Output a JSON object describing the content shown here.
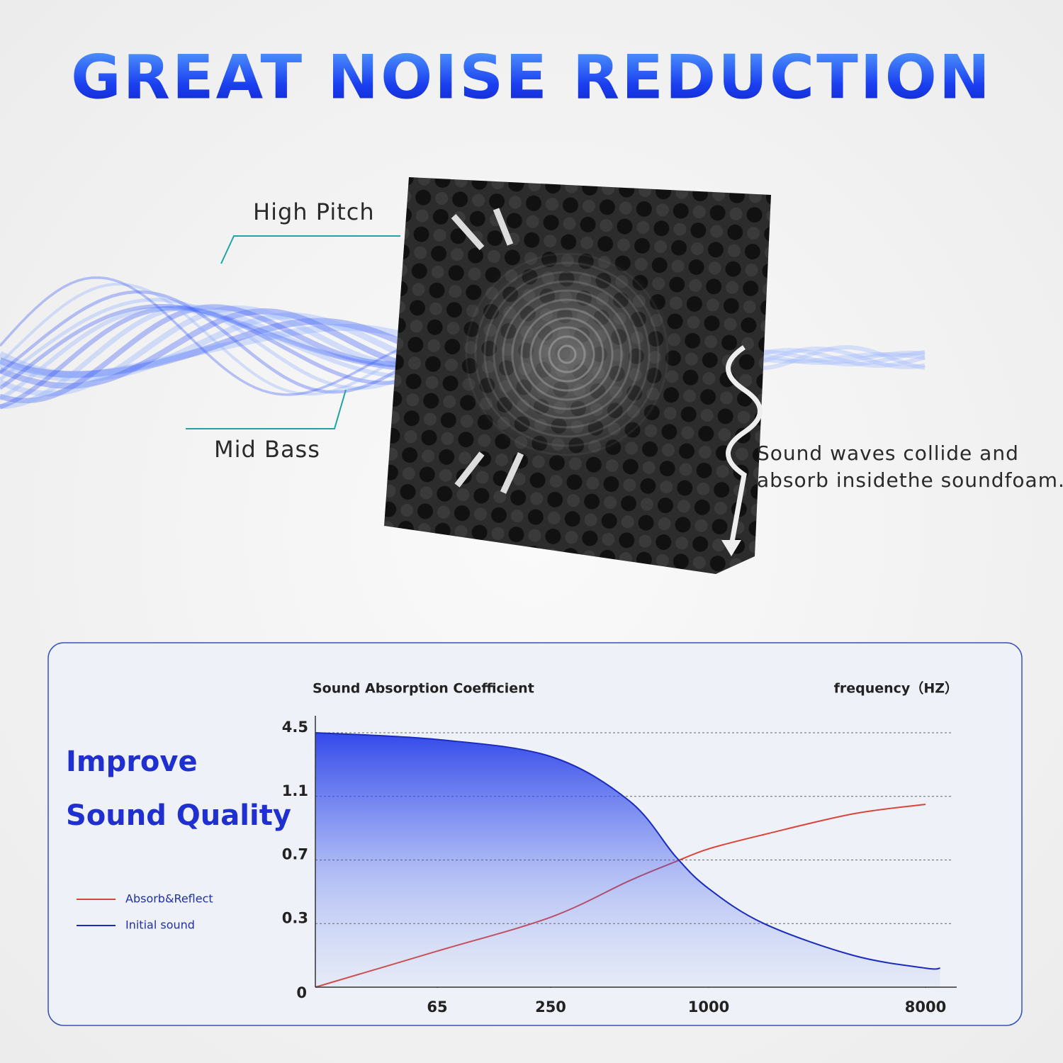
{
  "header": {
    "title": "GREAT NOISE REDUCTION"
  },
  "labels": {
    "high": "High Pitch",
    "mid": "Mid Bass",
    "note": [
      "Sound waves collide and",
      "absorb insidethe soundfoam."
    ]
  },
  "panel": {
    "heading": [
      "Improve",
      "Sound Quality"
    ]
  },
  "chart_data": {
    "type": "line",
    "title": "Sound Absorption Coefficient",
    "x_label": "frequency（HZ）",
    "x": [
      20,
      65,
      250,
      500,
      750,
      1000,
      1700,
      4000,
      8000,
      9000
    ],
    "series": [
      {
        "name": "Absorb&Reflect",
        "color": "#d9453a",
        "values": [
          0,
          0.17,
          0.34,
          0.57,
          0.69,
          0.77,
          0.86,
          0.99,
          1.05,
          null
        ]
      },
      {
        "name": "Initial sound",
        "color": "#1a2cbf",
        "values": [
          4.5,
          4.14,
          3.23,
          1.07,
          0.72,
          0.52,
          0.3,
          0.15,
          0.09,
          0.09
        ]
      }
    ],
    "xlim": [
      20,
      10000
    ],
    "xticks": [
      65,
      250,
      1000,
      8000
    ],
    "ylim": [
      0,
      4.5
    ],
    "yticks": [
      0,
      0.3,
      0.7,
      1.1,
      4.5
    ],
    "grid": true
  }
}
